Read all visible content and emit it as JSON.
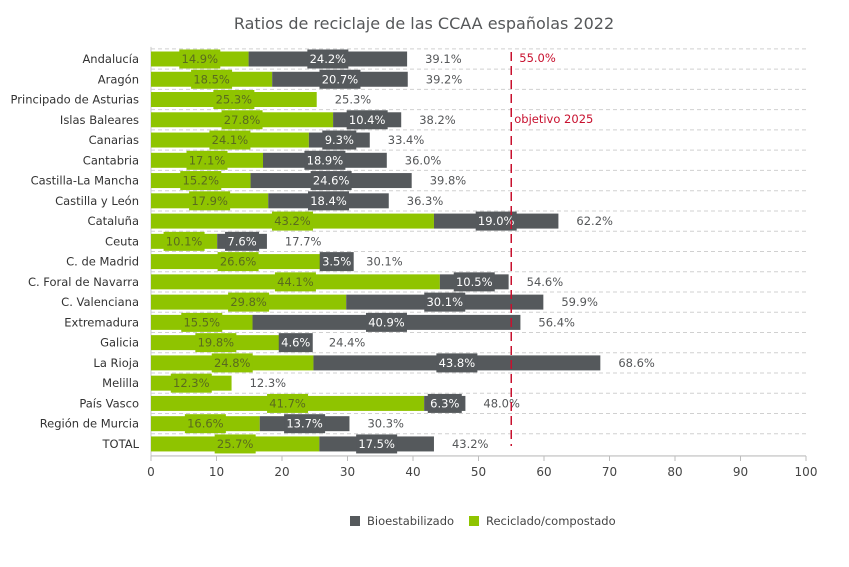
{
  "chart_data": {
    "type": "bar",
    "orientation": "horizontal",
    "stacked": true,
    "title": "Ratios de reciclaje de las CCAA españolas 2022",
    "xlabel": "",
    "ylabel": "",
    "xlim": [
      0,
      100
    ],
    "xticks": [
      0,
      10,
      20,
      30,
      40,
      50,
      60,
      70,
      80,
      90,
      100
    ],
    "grid": "horizontal-dashed",
    "categories": [
      "Andalucía",
      "Aragón",
      "Principado de Asturias",
      "Islas Baleares",
      "Canarias",
      "Cantabria",
      "Castilla-La Mancha",
      "Castilla y León",
      "Cataluña",
      "Ceuta",
      "C. de Madrid",
      "C. Foral de Navarra",
      "C. Valenciana",
      "Extremadura",
      "Galicia",
      "La Rioja",
      "Melilla",
      "País Vasco",
      "Región de Murcia",
      "TOTAL"
    ],
    "series": [
      {
        "name": "Reciclado/compostado",
        "color": "#8fc400",
        "label_color": "#5a6b1e",
        "values": [
          14.9,
          18.5,
          25.3,
          27.8,
          24.1,
          17.1,
          15.2,
          17.9,
          43.2,
          10.1,
          26.6,
          44.1,
          29.8,
          15.5,
          19.8,
          24.8,
          12.3,
          41.7,
          16.6,
          25.7
        ],
        "labels": [
          "14.9%",
          "18.5%",
          "25.3%",
          "27.8%",
          "24.1%",
          "17.1%",
          "15.2%",
          "17.9%",
          "43.2%",
          "10.1%",
          "26.6%",
          "44.1%",
          "29.8%",
          "15.5%",
          "19.8%",
          "24.8%",
          "12.3%",
          "41.7%",
          "16.6%",
          "25.7%"
        ]
      },
      {
        "name": "Bioestabilizado",
        "color": "#55595c",
        "label_color": "#ffffff",
        "values": [
          24.2,
          20.7,
          0,
          10.4,
          9.3,
          18.9,
          24.6,
          18.4,
          19.0,
          7.6,
          3.5,
          10.5,
          30.1,
          40.9,
          4.6,
          43.8,
          0,
          6.3,
          13.7,
          17.5
        ],
        "labels": [
          "24.2%",
          "20.7%",
          "",
          "10.4%",
          "9.3%",
          "18.9%",
          "24.6%",
          "18.4%",
          "19.0%",
          "7.6%",
          "3.5%",
          "10.5%",
          "30.1%",
          "40.9%",
          "4.6%",
          "43.8%",
          "",
          "6.3%",
          "13.7%",
          "17.5%"
        ]
      }
    ],
    "totals": [
      39.1,
      39.2,
      25.3,
      38.2,
      33.4,
      36.0,
      39.8,
      36.3,
      62.2,
      17.7,
      30.1,
      54.6,
      59.9,
      56.4,
      24.4,
      68.6,
      12.3,
      48.0,
      30.3,
      43.2
    ],
    "total_labels": [
      "39.1%",
      "39.2%",
      "25.3%",
      "38.2%",
      "33.4%",
      "36.0%",
      "39.8%",
      "36.3%",
      "62.2%",
      "17.7%",
      "30.1%",
      "54.6%",
      "59.9%",
      "56.4%",
      "24.4%",
      "68.6%",
      "12.3%",
      "48.0%",
      "30.3%",
      "43.2%"
    ],
    "target": {
      "value": 55.0,
      "value_label": "55.0%",
      "label": "objetivo 2025",
      "color": "#c8102e"
    },
    "legend": {
      "position": "bottom-center",
      "items": [
        {
          "name": "Bioestabilizado",
          "color": "#55595c"
        },
        {
          "name": "Reciclado/compostado",
          "color": "#8fc400"
        }
      ]
    }
  }
}
